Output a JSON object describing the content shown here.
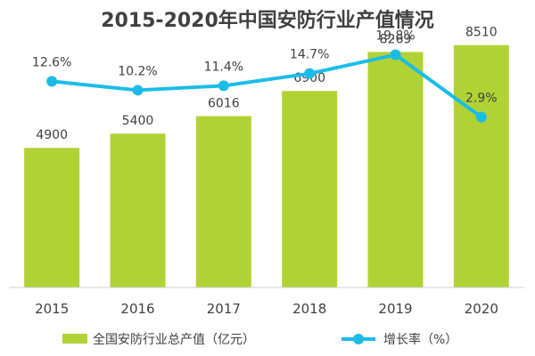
{
  "chart_data": {
    "type": "bar",
    "title": "2015-2020年中国安防行业产值情况",
    "categories": [
      "2015",
      "2016",
      "2017",
      "2018",
      "2019",
      "2020"
    ],
    "series": [
      {
        "name": "全国安防行业总产值（亿元）",
        "type": "bar",
        "values": [
          4900,
          5400,
          6016,
          6900,
          8269,
          8510
        ],
        "labels": [
          "4900",
          "5400",
          "6016",
          "6900",
          "8269",
          "8510"
        ],
        "color": "#B0D235"
      },
      {
        "name": "增长率（%）",
        "type": "line",
        "values": [
          12.6,
          10.2,
          11.4,
          14.7,
          19.8,
          2.9
        ],
        "labels": [
          "12.6%",
          "10.2%",
          "11.4%",
          "14.7%",
          "19.8%",
          "2.9%"
        ],
        "color": "#1BBCE8"
      }
    ],
    "ylim": [
      0,
      9000
    ],
    "rate_ylim": [
      -10,
      25
    ],
    "grid": false,
    "legend_position": "bottom"
  }
}
